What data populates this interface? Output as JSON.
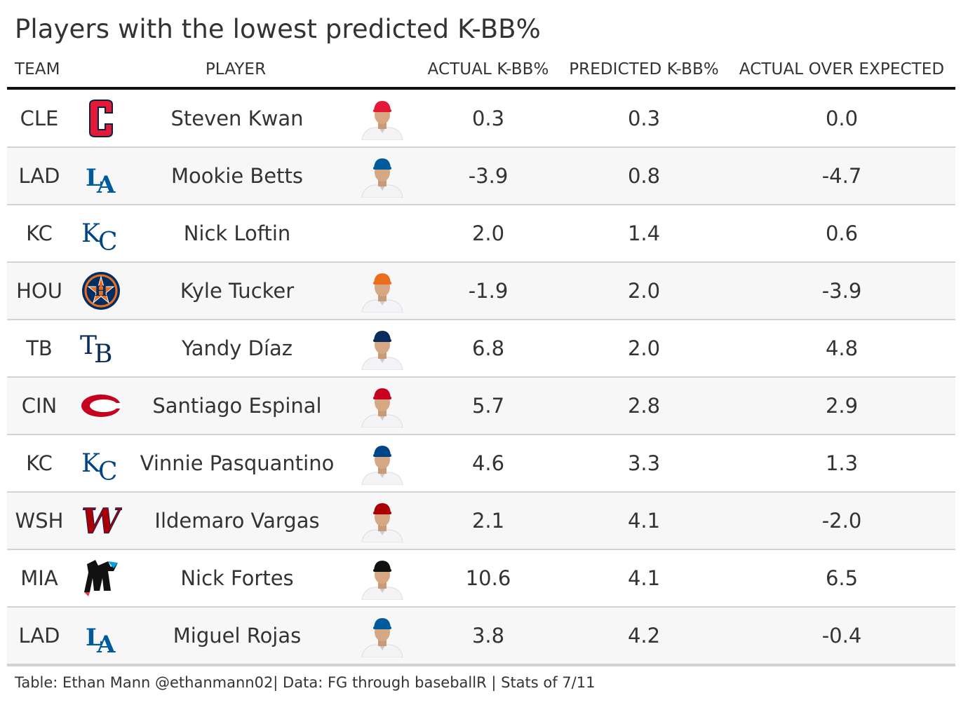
{
  "title": "Players with the lowest predicted K-BB%",
  "columns": {
    "team": "TEAM",
    "player": "PLAYER",
    "actual": "ACTUAL K-BB%",
    "predicted": "PREDICTED K-BB%",
    "aoe": "ACTUAL OVER EXPECTED"
  },
  "footer": "Table: Ethan Mann @ethanmann02| Data: FG through baseballR | Stats of 7/11",
  "colors": {
    "CLE": "#e31937",
    "LAD": "#005a9c",
    "KC": "#004687",
    "HOU": "#eb6e1f",
    "TB": "#092c5c",
    "CIN": "#c6011f",
    "WSH": "#ab0003",
    "MIA": "#111111"
  },
  "chart_data": {
    "type": "table",
    "columns": [
      "TEAM",
      "PLAYER",
      "ACTUAL K-BB%",
      "PREDICTED K-BB%",
      "ACTUAL OVER EXPECTED"
    ],
    "rows": [
      {
        "team": "CLE",
        "logo": "guardians-logo",
        "player": "Steven Kwan",
        "photo": "player-headshot",
        "actual": "0.3",
        "predicted": "0.3",
        "aoe": "0.0"
      },
      {
        "team": "LAD",
        "logo": "dodgers-logo",
        "player": "Mookie Betts",
        "photo": "player-headshot",
        "actual": "-3.9",
        "predicted": "0.8",
        "aoe": "-4.7"
      },
      {
        "team": "KC",
        "logo": "royals-logo",
        "player": "Nick Loftin",
        "photo": "",
        "actual": "2.0",
        "predicted": "1.4",
        "aoe": "0.6"
      },
      {
        "team": "HOU",
        "logo": "astros-logo",
        "player": "Kyle Tucker",
        "photo": "player-headshot",
        "actual": "-1.9",
        "predicted": "2.0",
        "aoe": "-3.9"
      },
      {
        "team": "TB",
        "logo": "rays-logo",
        "player": "Yandy Díaz",
        "photo": "player-headshot",
        "actual": "6.8",
        "predicted": "2.0",
        "aoe": "4.8"
      },
      {
        "team": "CIN",
        "logo": "reds-logo",
        "player": "Santiago Espinal",
        "photo": "player-headshot",
        "actual": "5.7",
        "predicted": "2.8",
        "aoe": "2.9"
      },
      {
        "team": "KC",
        "logo": "royals-logo",
        "player": "Vinnie Pasquantino",
        "photo": "player-headshot",
        "actual": "4.6",
        "predicted": "3.3",
        "aoe": "1.3"
      },
      {
        "team": "WSH",
        "logo": "nationals-logo",
        "player": "Ildemaro Vargas",
        "photo": "player-headshot",
        "actual": "2.1",
        "predicted": "4.1",
        "aoe": "-2.0"
      },
      {
        "team": "MIA",
        "logo": "marlins-logo",
        "player": "Nick Fortes",
        "photo": "player-headshot",
        "actual": "10.6",
        "predicted": "4.1",
        "aoe": "6.5"
      },
      {
        "team": "LAD",
        "logo": "dodgers-logo",
        "player": "Miguel Rojas",
        "photo": "player-headshot",
        "actual": "3.8",
        "predicted": "4.2",
        "aoe": "-0.4"
      }
    ]
  }
}
